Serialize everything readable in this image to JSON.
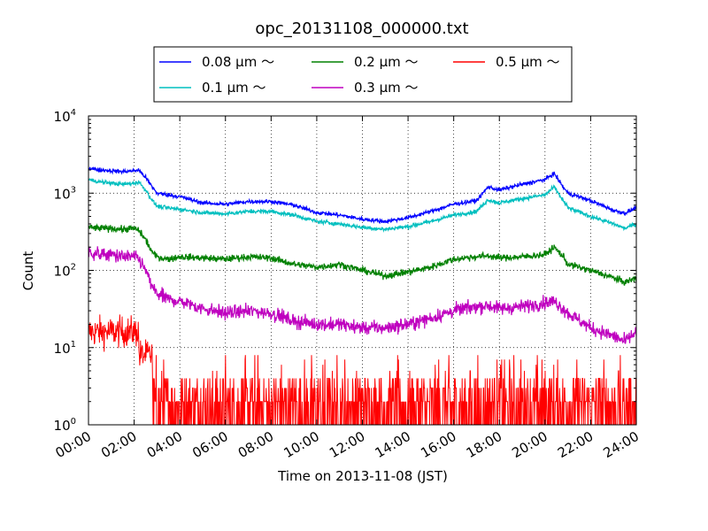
{
  "chart_data": {
    "type": "line",
    "title": "opc_20131108_000000.txt",
    "xlabel": "Time on 2013-11-08 (JST)",
    "ylabel": "Count",
    "xlim": [
      "00:00",
      "24:00"
    ],
    "ylim": [
      1,
      10000
    ],
    "yscale": "log",
    "grid": true,
    "legend_position": "top (above plot)",
    "x_tick_labels": [
      "00:00",
      "02:00",
      "04:00",
      "06:00",
      "08:00",
      "10:00",
      "12:00",
      "14:00",
      "16:00",
      "18:00",
      "20:00",
      "22:00",
      "24:00"
    ],
    "y_tick_labels": [
      {
        "base": "10",
        "exp": "0"
      },
      {
        "base": "10",
        "exp": "1"
      },
      {
        "base": "10",
        "exp": "2"
      },
      {
        "base": "10",
        "exp": "3"
      },
      {
        "base": "10",
        "exp": "4"
      }
    ],
    "x_hours": [
      0,
      0.5,
      1,
      1.5,
      2,
      2.2,
      2.5,
      2.8,
      3,
      3.5,
      4,
      5,
      6,
      7,
      8,
      9,
      10,
      11,
      12,
      13,
      14,
      15,
      16,
      17,
      17.5,
      18,
      19,
      20,
      20.4,
      20.8,
      21,
      22,
      23,
      23.5,
      24
    ],
    "series": [
      {
        "name": "0.08 μm ～",
        "color": "#0000ff",
        "noise": 0.06,
        "values": [
          2100,
          2000,
          1950,
          1900,
          1950,
          2000,
          1600,
          1200,
          1000,
          950,
          900,
          750,
          720,
          780,
          780,
          700,
          560,
          520,
          460,
          430,
          480,
          580,
          720,
          800,
          1200,
          1100,
          1300,
          1500,
          1800,
          1200,
          1000,
          800,
          600,
          550,
          650
        ]
      },
      {
        "name": "0.1 μm ～",
        "color": "#00bfbf",
        "noise": 0.06,
        "values": [
          1500,
          1400,
          1350,
          1300,
          1350,
          1400,
          1100,
          800,
          680,
          640,
          620,
          560,
          540,
          580,
          580,
          520,
          430,
          400,
          360,
          340,
          370,
          430,
          520,
          580,
          820,
          750,
          850,
          950,
          1200,
          800,
          650,
          500,
          400,
          350,
          400
        ]
      },
      {
        "name": "0.2 μm ～",
        "color": "#008000",
        "noise": 0.1,
        "values": [
          360,
          350,
          350,
          340,
          350,
          330,
          250,
          170,
          150,
          140,
          150,
          145,
          140,
          150,
          145,
          120,
          110,
          120,
          100,
          85,
          95,
          110,
          140,
          150,
          155,
          145,
          150,
          160,
          200,
          150,
          120,
          100,
          80,
          70,
          80
        ]
      },
      {
        "name": "0.3 μm ～",
        "color": "#bf00bf",
        "noise": 0.2,
        "values": [
          170,
          160,
          160,
          150,
          150,
          140,
          100,
          60,
          50,
          42,
          40,
          32,
          28,
          30,
          28,
          22,
          20,
          20,
          18,
          18,
          20,
          24,
          30,
          34,
          35,
          32,
          34,
          38,
          40,
          32,
          28,
          18,
          14,
          12,
          16
        ]
      }
    ],
    "noisy_series": {
      "name": "0.5 μm ～",
      "color": "#ff0000",
      "segments": [
        {
          "x_from": 0,
          "x_to": 2.2,
          "mean": 16
        },
        {
          "x_from": 2.2,
          "x_to": 2.8,
          "mean": 8
        },
        {
          "x_from": 2.8,
          "x_to": 24,
          "mean": 2
        }
      ]
    },
    "legend_items": [
      {
        "label": "0.08 μm ～",
        "color": "#0000ff"
      },
      {
        "label": "0.1 μm ～",
        "color": "#00bfbf"
      },
      {
        "label": "0.2 μm ～",
        "color": "#008000"
      },
      {
        "label": "0.3 μm ～",
        "color": "#bf00bf"
      },
      {
        "label": "0.5 μm ～",
        "color": "#ff0000"
      }
    ]
  }
}
